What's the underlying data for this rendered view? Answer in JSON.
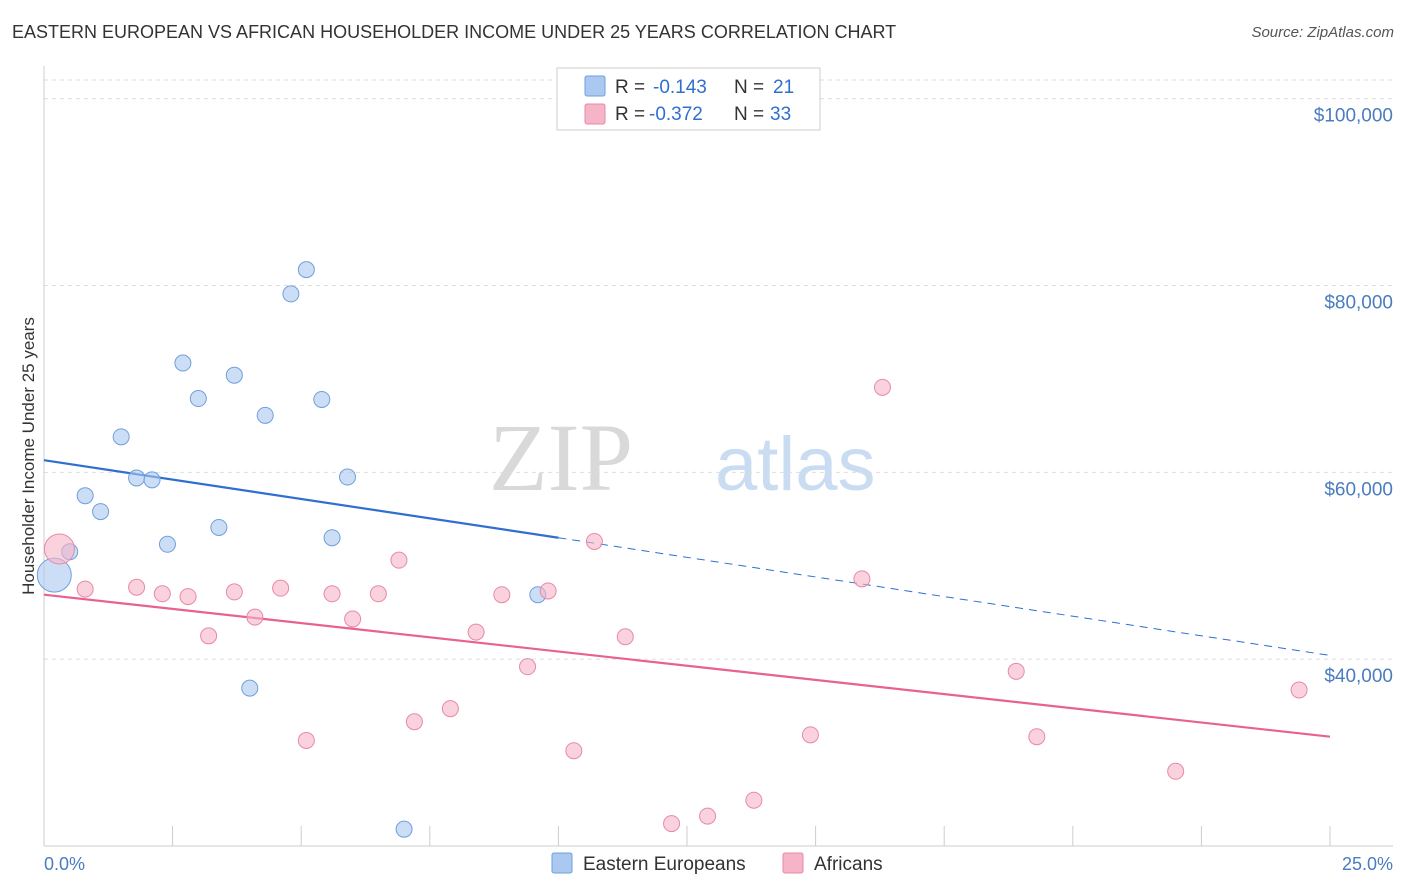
{
  "title": "EASTERN EUROPEAN VS AFRICAN HOUSEHOLDER INCOME UNDER 25 YEARS CORRELATION CHART",
  "source": "Source: ZipAtlas.com",
  "watermark": {
    "zip": "ZIP",
    "atlas": "atlas"
  },
  "legend_top": [
    {
      "r_label": "R =",
      "r_value": "-0.143",
      "n_label": "N =",
      "n_value": "21",
      "color": "#aac8f0"
    },
    {
      "r_label": "R =",
      "r_value": "-0.372",
      "n_label": "N =",
      "n_value": "33",
      "color": "#f5b4c8"
    }
  ],
  "chart_data": {
    "type": "scatter",
    "title": "EASTERN EUROPEAN VS AFRICAN HOUSEHOLDER INCOME UNDER 25 YEARS CORRELATION CHART",
    "xlabel": "",
    "ylabel": "Householder Income Under 25 years",
    "xlim": [
      0,
      25
    ],
    "ylim": [
      20000,
      102000
    ],
    "x_tick_labels": [
      "0.0%",
      "25.0%"
    ],
    "y_ticks": [
      40000,
      60000,
      80000,
      100000
    ],
    "y_tick_labels": [
      "$40,000",
      "$60,000",
      "$80,000",
      "$100,000"
    ],
    "grid": true,
    "legend_position": "bottom",
    "series": [
      {
        "name": "Eastern Europeans",
        "color": "#aac8f0",
        "stroke": "#6f9fdc",
        "trend_color": "#2f6fd0",
        "trend": {
          "x0": 0,
          "y0": 61300,
          "x1": 10,
          "y1": 53000,
          "x_dash_end": 25,
          "y_dash_end": 40400
        },
        "points": [
          {
            "x": 0.2,
            "y": 49000,
            "big": true
          },
          {
            "x": 0.5,
            "y": 51500
          },
          {
            "x": 0.8,
            "y": 57500
          },
          {
            "x": 1.1,
            "y": 55800
          },
          {
            "x": 1.5,
            "y": 63800
          },
          {
            "x": 1.8,
            "y": 59400
          },
          {
            "x": 2.1,
            "y": 59200
          },
          {
            "x": 2.4,
            "y": 52300
          },
          {
            "x": 2.7,
            "y": 71700
          },
          {
            "x": 3.0,
            "y": 67900
          },
          {
            "x": 3.4,
            "y": 54100
          },
          {
            "x": 3.7,
            "y": 70400
          },
          {
            "x": 4.0,
            "y": 36900
          },
          {
            "x": 4.3,
            "y": 66100
          },
          {
            "x": 4.8,
            "y": 79100
          },
          {
            "x": 5.1,
            "y": 81700
          },
          {
            "x": 5.4,
            "y": 67800
          },
          {
            "x": 5.6,
            "y": 53000
          },
          {
            "x": 5.9,
            "y": 59500
          },
          {
            "x": 7.0,
            "y": 21800
          },
          {
            "x": 9.6,
            "y": 46900
          }
        ]
      },
      {
        "name": "Africans",
        "color": "#f5b4c8",
        "stroke": "#e889a8",
        "trend_color": "#e8628f",
        "trend": {
          "x0": 0,
          "y0": 46900,
          "x1": 25,
          "y1": 31700
        },
        "points": [
          {
            "x": 0.3,
            "y": 51800,
            "big": true
          },
          {
            "x": 0.8,
            "y": 47500
          },
          {
            "x": 1.8,
            "y": 47700
          },
          {
            "x": 2.3,
            "y": 47000
          },
          {
            "x": 2.8,
            "y": 46700
          },
          {
            "x": 3.2,
            "y": 42500
          },
          {
            "x": 3.7,
            "y": 47200
          },
          {
            "x": 4.1,
            "y": 44500
          },
          {
            "x": 4.6,
            "y": 47600
          },
          {
            "x": 5.1,
            "y": 31300
          },
          {
            "x": 5.6,
            "y": 47000
          },
          {
            "x": 6.0,
            "y": 44300
          },
          {
            "x": 6.5,
            "y": 47000
          },
          {
            "x": 6.9,
            "y": 50600
          },
          {
            "x": 7.2,
            "y": 33300
          },
          {
            "x": 7.9,
            "y": 34700
          },
          {
            "x": 8.4,
            "y": 42900
          },
          {
            "x": 8.9,
            "y": 46900
          },
          {
            "x": 9.4,
            "y": 39200
          },
          {
            "x": 9.8,
            "y": 47300
          },
          {
            "x": 10.3,
            "y": 30200
          },
          {
            "x": 10.7,
            "y": 52600
          },
          {
            "x": 11.3,
            "y": 42400
          },
          {
            "x": 12.2,
            "y": 22400
          },
          {
            "x": 12.9,
            "y": 23200
          },
          {
            "x": 13.8,
            "y": 24900
          },
          {
            "x": 14.9,
            "y": 31900
          },
          {
            "x": 15.9,
            "y": 48600
          },
          {
            "x": 16.3,
            "y": 69100
          },
          {
            "x": 18.9,
            "y": 38700
          },
          {
            "x": 19.3,
            "y": 31700
          },
          {
            "x": 22.0,
            "y": 28000
          },
          {
            "x": 24.4,
            "y": 36700
          }
        ]
      }
    ]
  }
}
